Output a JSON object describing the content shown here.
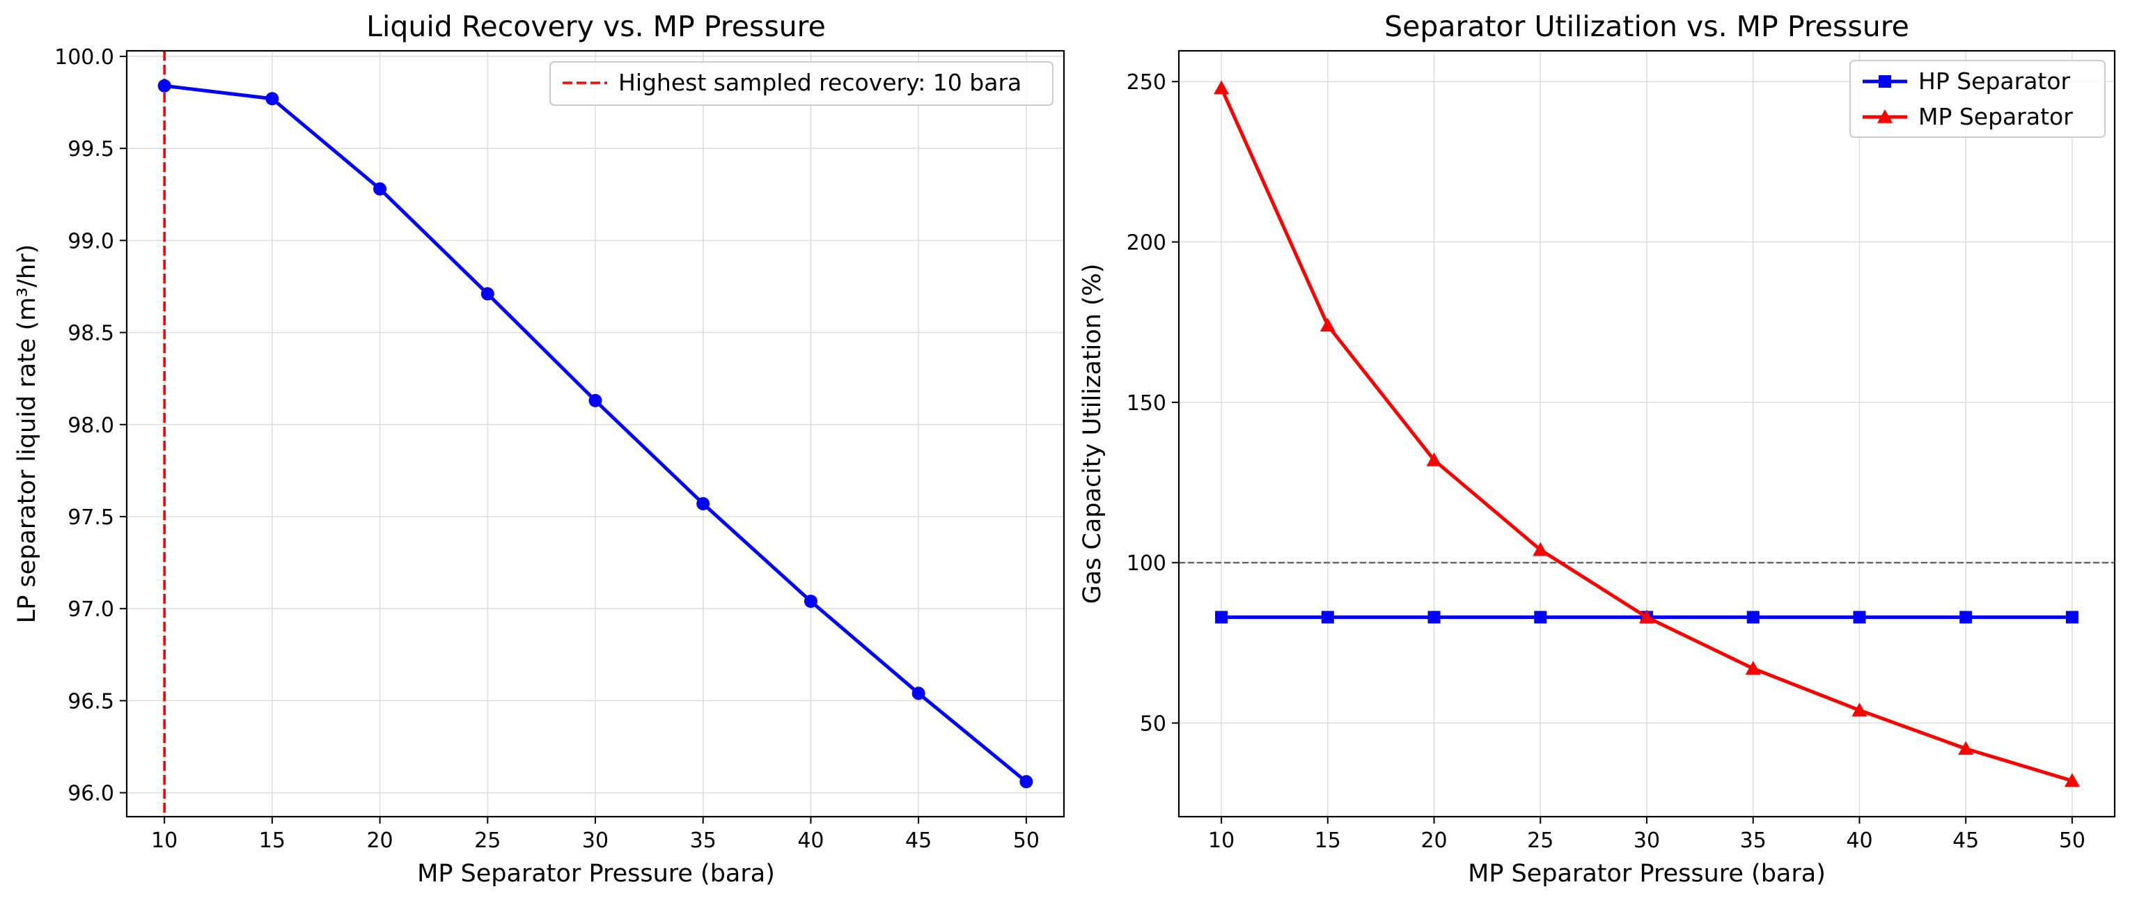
{
  "chart_data": [
    {
      "type": "line",
      "title": "Liquid Recovery vs. MP Pressure",
      "xlabel": "MP Separator Pressure (bara)",
      "ylabel": "LP separator liquid rate (m³/hr)",
      "xlim": [
        8.25,
        51.75
      ],
      "ylim": [
        95.87,
        100.03
      ],
      "xticks": [
        10,
        15,
        20,
        25,
        30,
        35,
        40,
        45,
        50
      ],
      "yticks": [
        96.0,
        96.5,
        97.0,
        97.5,
        98.0,
        98.5,
        99.0,
        99.5,
        100.0
      ],
      "ytick_labels": [
        "96.0",
        "96.5",
        "97.0",
        "97.5",
        "98.0",
        "98.5",
        "99.0",
        "99.5",
        "100.0"
      ],
      "grid": true,
      "legend": "top-right",
      "x": [
        10,
        15,
        20,
        25,
        30,
        35,
        40,
        45,
        50
      ],
      "series": [
        {
          "values": [
            99.84,
            99.77,
            99.28,
            98.71,
            98.13,
            97.57,
            97.04,
            96.54,
            96.06
          ],
          "color": "#0000ff",
          "marker": "circle"
        }
      ],
      "reference_lines": [
        {
          "orientation": "vertical",
          "value": 10,
          "name": "Highest sampled recovery: 10 bara",
          "color": "#ff0000",
          "style": "dashed"
        }
      ]
    },
    {
      "type": "line",
      "title": "Separator Utilization vs. MP Pressure",
      "xlabel": "MP Separator Pressure (bara)",
      "ylabel": "Gas Capacity Utilization (%)",
      "xlim": [
        8.0,
        52.0
      ],
      "ylim": [
        20.8,
        259.6
      ],
      "xticks": [
        10,
        15,
        20,
        25,
        30,
        35,
        40,
        45,
        50
      ],
      "yticks": [
        50,
        100,
        150,
        200,
        250
      ],
      "ytick_labels": [
        "50",
        "100",
        "150",
        "200",
        "250"
      ],
      "grid": true,
      "legend": "top-right",
      "x": [
        10,
        15,
        20,
        25,
        30,
        35,
        40,
        45,
        50
      ],
      "series": [
        {
          "name": "HP Separator",
          "values": [
            83,
            83,
            83,
            83,
            83,
            83,
            83,
            83,
            83
          ],
          "color": "#0000ff",
          "marker": "square"
        },
        {
          "name": "MP Separator",
          "values": [
            248,
            174,
            132,
            104,
            83,
            67,
            54,
            42,
            32
          ],
          "color": "#ff0000",
          "marker": "triangle"
        }
      ],
      "reference_lines": [
        {
          "orientation": "horizontal",
          "value": 100,
          "color": "#666666",
          "style": "dashed"
        }
      ]
    }
  ]
}
